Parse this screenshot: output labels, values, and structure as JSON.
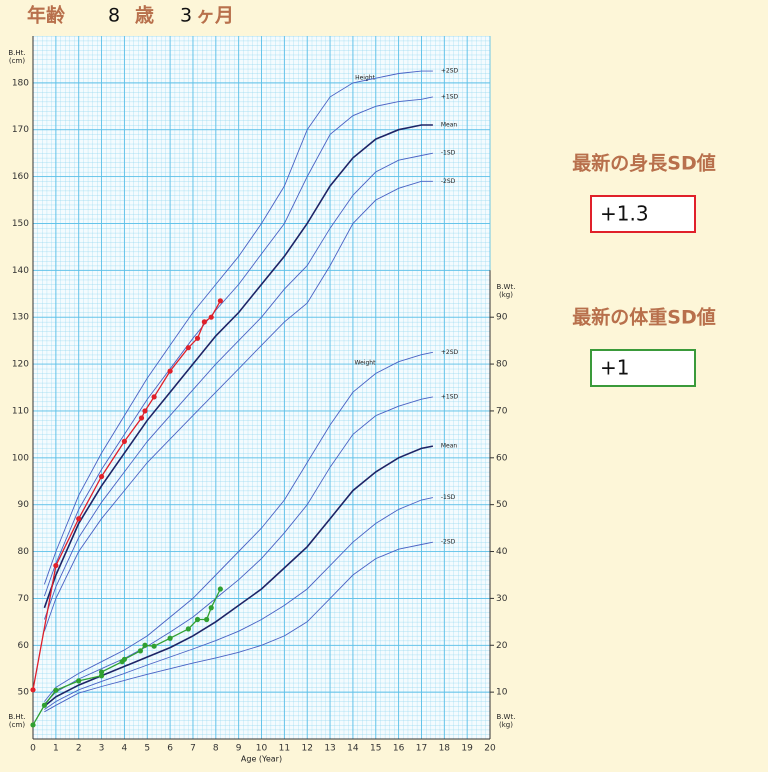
{
  "header": {
    "label": "年齢",
    "years": "8",
    "years_unit": "歳",
    "months": "3",
    "months_unit": "ヶ月"
  },
  "panels": [
    {
      "title": "最新の身長SD値",
      "value": "+1.3",
      "color": "#e0202a"
    },
    {
      "title": "最新の体重SD値",
      "value": "+1",
      "color": "#3a9a3a"
    }
  ],
  "chart_data": {
    "type": "line",
    "xlabel": "Age (Year)",
    "ylabel": [
      "B.Ht.",
      "(cm)"
    ],
    "y2label": [
      "B.Wt.",
      "(kg)"
    ],
    "annotations": [
      "Height",
      "Weight"
    ],
    "xlim": [
      0,
      20
    ],
    "xticks": [
      0,
      1,
      2,
      3,
      4,
      5,
      6,
      7,
      8,
      9,
      10,
      11,
      12,
      13,
      14,
      15,
      16,
      17,
      18,
      19,
      20
    ],
    "ylim": [
      40,
      190
    ],
    "yticks": [
      50,
      60,
      70,
      80,
      90,
      100,
      110,
      120,
      130,
      140,
      150,
      160,
      170,
      180
    ],
    "y2lim": [
      0,
      150
    ],
    "y2ticks": [
      10,
      20,
      30,
      40,
      50,
      60,
      70,
      80,
      90
    ],
    "grid": true,
    "series": [
      {
        "name": "+2SD",
        "color": "#4a62c4",
        "x": [
          0.5,
          1,
          2,
          3,
          4,
          5,
          6,
          7,
          8,
          9,
          10,
          11,
          12,
          13,
          14,
          15,
          16,
          17,
          17.5
        ],
        "values": [
          73,
          80,
          92,
          101,
          109,
          117,
          124,
          131,
          137,
          143,
          150,
          158,
          170,
          177,
          180,
          181,
          182,
          182.5,
          182.5
        ]
      },
      {
        "name": "+1SD",
        "color": "#4a62c4",
        "x": [
          0.5,
          1,
          2,
          3,
          4,
          5,
          6,
          7,
          8,
          9,
          10,
          11,
          12,
          13,
          14,
          15,
          16,
          17,
          17.5
        ],
        "values": [
          70.5,
          77.5,
          89,
          97.5,
          105,
          112.5,
          119,
          125.5,
          131.5,
          137,
          143.5,
          150,
          160,
          169,
          173,
          175,
          176,
          176.5,
          177
        ]
      },
      {
        "name": "Mean",
        "color": "#1e2466",
        "x": [
          0.5,
          1,
          2,
          3,
          4,
          5,
          6,
          7,
          8,
          9,
          10,
          11,
          12,
          13,
          14,
          15,
          16,
          17,
          17.5
        ],
        "values": [
          68,
          75,
          86,
          94,
          101,
          108,
          114,
          120,
          126,
          131,
          137,
          143,
          150,
          158,
          164,
          168,
          170,
          171,
          171
        ]
      },
      {
        "name": "-1SD",
        "color": "#4a62c4",
        "x": [
          0.5,
          1,
          2,
          3,
          4,
          5,
          6,
          7,
          8,
          9,
          10,
          11,
          12,
          13,
          14,
          15,
          16,
          17,
          17.5
        ],
        "values": [
          65.5,
          72.5,
          83,
          90.5,
          97,
          103.5,
          109,
          114.5,
          120,
          125,
          130,
          136,
          141,
          149,
          156,
          161,
          163.5,
          164.5,
          165
        ]
      },
      {
        "name": "-2SD",
        "color": "#4a62c4",
        "x": [
          0.5,
          1,
          2,
          3,
          4,
          5,
          6,
          7,
          8,
          9,
          10,
          11,
          12,
          13,
          14,
          15,
          16,
          17,
          17.5
        ],
        "values": [
          63,
          70,
          80,
          87,
          93,
          99,
          104,
          109,
          114,
          119,
          124,
          129,
          133,
          141,
          150,
          155,
          157.5,
          159,
          159
        ]
      },
      {
        "name": "+2SD",
        "color": "#4a62c4",
        "axis": "y2",
        "x": [
          0.5,
          1,
          2,
          3,
          4,
          5,
          6,
          7,
          8,
          9,
          10,
          11,
          12,
          13,
          14,
          15,
          16,
          17,
          17.5
        ],
        "values": [
          8,
          11,
          14,
          16.5,
          19,
          22,
          26,
          30,
          35,
          40,
          45,
          51,
          59,
          67,
          74,
          78,
          80.5,
          82,
          82.5
        ]
      },
      {
        "name": "+1SD",
        "color": "#4a62c4",
        "axis": "y2",
        "x": [
          0.5,
          1,
          2,
          3,
          4,
          5,
          6,
          7,
          8,
          9,
          10,
          11,
          12,
          13,
          14,
          15,
          16,
          17,
          17.5
        ],
        "values": [
          7.5,
          10,
          12.8,
          15,
          17.2,
          19.8,
          22.8,
          26,
          30,
          34,
          38.5,
          44,
          50,
          58,
          65,
          69,
          71,
          72.5,
          73
        ]
      },
      {
        "name": "Mean",
        "color": "#1e2466",
        "axis": "y2",
        "x": [
          0.5,
          1,
          2,
          3,
          4,
          5,
          6,
          7,
          8,
          9,
          10,
          11,
          12,
          13,
          14,
          15,
          16,
          17,
          17.5
        ],
        "values": [
          7,
          9,
          11.5,
          13.5,
          15.5,
          17.5,
          19.5,
          22,
          25,
          28.5,
          32,
          36.5,
          41,
          47,
          53,
          57,
          60,
          62,
          62.5
        ]
      },
      {
        "name": "-1SD",
        "color": "#4a62c4",
        "axis": "y2",
        "x": [
          0.5,
          1,
          2,
          3,
          4,
          5,
          6,
          7,
          8,
          9,
          10,
          11,
          12,
          13,
          14,
          15,
          16,
          17,
          17.5
        ],
        "values": [
          6.3,
          8,
          10.5,
          12.3,
          14,
          15.8,
          17.5,
          19.2,
          21,
          23,
          25.5,
          28.5,
          32,
          37,
          42,
          46,
          49,
          51,
          51.5
        ]
      },
      {
        "name": "-2SD",
        "color": "#4a62c4",
        "axis": "y2",
        "x": [
          0.5,
          1,
          2,
          3,
          4,
          5,
          6,
          7,
          8,
          9,
          10,
          11,
          12,
          13,
          14,
          15,
          16,
          17,
          17.5
        ],
        "values": [
          5.8,
          7.2,
          9.8,
          11.2,
          12.5,
          13.8,
          15,
          16.2,
          17.3,
          18.5,
          20,
          22,
          25,
          30,
          35,
          38.5,
          40.5,
          41.5,
          42
        ]
      },
      {
        "color": "#e0202a",
        "markers": true,
        "x": [
          0,
          1,
          2,
          3,
          4,
          4.75,
          4.9,
          5.3,
          6,
          6.8,
          7.2,
          7.5,
          7.8,
          8.2
        ],
        "values": [
          50.5,
          77,
          87,
          96,
          103.5,
          108.5,
          110,
          113,
          118.5,
          123.5,
          125.5,
          129,
          130,
          133.5
        ]
      },
      {
        "color": "#30a030",
        "markers": true,
        "axis": "y2",
        "x": [
          0,
          0.5,
          1,
          2,
          3,
          3,
          3.9,
          4,
          4.7,
          4.9,
          5.3,
          6,
          6.8,
          7.2,
          7.6,
          7.8,
          8.2
        ],
        "values": [
          3,
          7.2,
          10.4,
          12.4,
          13.5,
          14.3,
          16.5,
          17,
          18.8,
          20,
          19.8,
          21.5,
          23.5,
          25.5,
          25.5,
          28,
          32
        ]
      }
    ]
  }
}
